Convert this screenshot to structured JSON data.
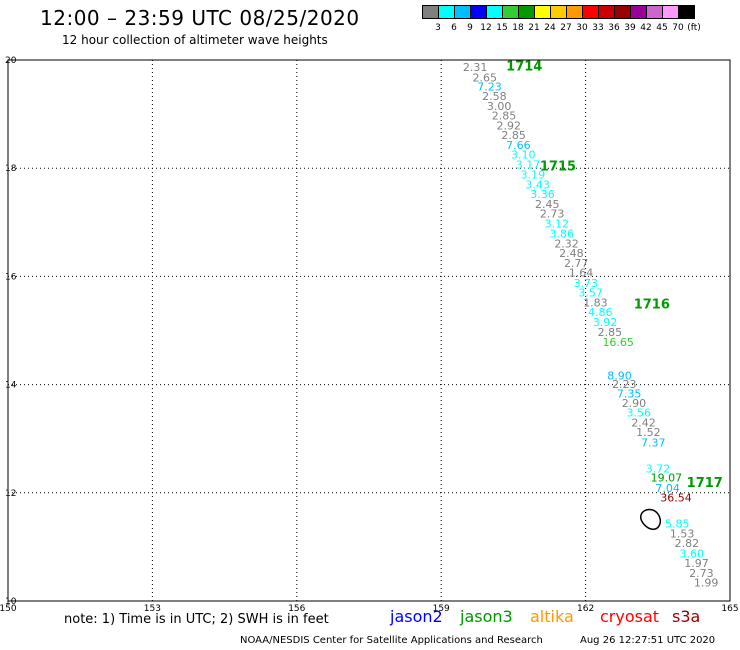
{
  "header": {
    "title": "12:00 – 23:59 UTC 08/25/2020",
    "subtitle": "12 hour collection of altimeter wave heights"
  },
  "colorbar": {
    "colors": [
      "#808080",
      "#00ffff",
      "#00bfff",
      "#0000ff",
      "#00ffff",
      "#33cc33",
      "#009900",
      "#ffff00",
      "#ffcc00",
      "#ff9900",
      "#ff0000",
      "#cc0000",
      "#990000",
      "#990099",
      "#cc66cc",
      "#ff99ff",
      "#000000"
    ],
    "labels": [
      "3",
      "6",
      "9",
      "12",
      "15",
      "18",
      "21",
      "24",
      "27",
      "30",
      "33",
      "36",
      "39",
      "42",
      "45",
      "70",
      "(ft)"
    ]
  },
  "footer": {
    "note": "note: 1) Time is in UTC; 2) SWH is in feet",
    "credit": "NOAA/NESDIS Center for Satellite Applications and Research",
    "timestamp": "Aug 26 12:27:51 UTC 2020",
    "satellites": [
      {
        "name": "jason2",
        "color": "#0000ff"
      },
      {
        "name": "jason3",
        "color": "#009900"
      },
      {
        "name": "altika",
        "color": "#ff9900"
      },
      {
        "name": "cryosat",
        "color": "#ff0000"
      },
      {
        "name": "s3a",
        "color": "#990000"
      }
    ]
  },
  "chart_data": {
    "type": "scatter",
    "title": "12:00 – 23:59 UTC 08/25/2020",
    "subtitle": "12 hour collection of altimeter wave heights",
    "xlim": [
      150,
      165
    ],
    "ylim": [
      10,
      20
    ],
    "x_ticks": [
      150,
      153,
      156,
      159,
      162,
      165
    ],
    "y_ticks": [
      10,
      12,
      14,
      16,
      18,
      20
    ],
    "grid": true,
    "grid_style": "dotted",
    "units": "ft",
    "points": [
      {
        "lon": 159.45,
        "lat": 19.87,
        "swh": "2.31",
        "color": "#808080"
      },
      {
        "lon": 159.65,
        "lat": 19.68,
        "swh": "2.65",
        "color": "#808080"
      },
      {
        "lon": 159.75,
        "lat": 19.51,
        "swh": "7.23",
        "color": "#00bfff"
      },
      {
        "lon": 159.85,
        "lat": 19.33,
        "swh": "2.58",
        "color": "#808080"
      },
      {
        "lon": 159.95,
        "lat": 19.15,
        "swh": "3.00",
        "color": "#808080"
      },
      {
        "lon": 160.05,
        "lat": 18.97,
        "swh": "2.85",
        "color": "#808080"
      },
      {
        "lon": 160.15,
        "lat": 18.79,
        "swh": "2.92",
        "color": "#808080"
      },
      {
        "lon": 160.25,
        "lat": 18.61,
        "swh": "2.85",
        "color": "#808080"
      },
      {
        "lon": 160.35,
        "lat": 18.43,
        "swh": "7.66",
        "color": "#00bfff"
      },
      {
        "lon": 160.45,
        "lat": 18.25,
        "swh": "3.10",
        "color": "#00ffff"
      },
      {
        "lon": 160.55,
        "lat": 18.07,
        "swh": "3.17",
        "color": "#00ffff"
      },
      {
        "lon": 160.65,
        "lat": 17.88,
        "swh": "3.19",
        "color": "#00ffff"
      },
      {
        "lon": 160.75,
        "lat": 17.7,
        "swh": "3.43",
        "color": "#00ffff"
      },
      {
        "lon": 160.85,
        "lat": 17.52,
        "swh": "3.36",
        "color": "#00ffff"
      },
      {
        "lon": 160.95,
        "lat": 17.34,
        "swh": "2.45",
        "color": "#808080"
      },
      {
        "lon": 161.05,
        "lat": 17.16,
        "swh": "2.73",
        "color": "#808080"
      },
      {
        "lon": 161.15,
        "lat": 16.98,
        "swh": "3.12",
        "color": "#00ffff"
      },
      {
        "lon": 161.25,
        "lat": 16.79,
        "swh": "3.86",
        "color": "#00ffff"
      },
      {
        "lon": 161.35,
        "lat": 16.61,
        "swh": "2.32",
        "color": "#808080"
      },
      {
        "lon": 161.45,
        "lat": 16.43,
        "swh": "2.48",
        "color": "#808080"
      },
      {
        "lon": 161.55,
        "lat": 16.25,
        "swh": "2.77",
        "color": "#808080"
      },
      {
        "lon": 161.65,
        "lat": 16.07,
        "swh": "1.64",
        "color": "#808080"
      },
      {
        "lon": 161.75,
        "lat": 15.88,
        "swh": "3.73",
        "color": "#00ffff"
      },
      {
        "lon": 161.85,
        "lat": 15.7,
        "swh": "3.57",
        "color": "#00ffff"
      },
      {
        "lon": 161.95,
        "lat": 15.52,
        "swh": "1.83",
        "color": "#808080"
      },
      {
        "lon": 162.05,
        "lat": 15.34,
        "swh": "4.86",
        "color": "#00ffff"
      },
      {
        "lon": 162.15,
        "lat": 15.16,
        "swh": "3.92",
        "color": "#00ffff"
      },
      {
        "lon": 162.25,
        "lat": 14.97,
        "swh": "2.85",
        "color": "#808080"
      },
      {
        "lon": 162.35,
        "lat": 14.79,
        "swh": "16.65",
        "color": "#33cc33"
      },
      {
        "lon": 162.45,
        "lat": 14.17,
        "swh": "8.90",
        "color": "#00bfff"
      },
      {
        "lon": 162.55,
        "lat": 14.01,
        "swh": "2.23",
        "color": "#808080"
      },
      {
        "lon": 162.65,
        "lat": 13.84,
        "swh": "7.35",
        "color": "#00bfff"
      },
      {
        "lon": 162.75,
        "lat": 13.66,
        "swh": "2.90",
        "color": "#808080"
      },
      {
        "lon": 162.85,
        "lat": 13.48,
        "swh": "3.56",
        "color": "#00ffff"
      },
      {
        "lon": 162.95,
        "lat": 13.3,
        "swh": "2.42",
        "color": "#808080"
      },
      {
        "lon": 163.05,
        "lat": 13.12,
        "swh": "1.52",
        "color": "#808080"
      },
      {
        "lon": 163.15,
        "lat": 12.93,
        "swh": "7.37",
        "color": "#00bfff"
      },
      {
        "lon": 163.25,
        "lat": 12.45,
        "swh": "3.72",
        "color": "#00ffff"
      },
      {
        "lon": 163.35,
        "lat": 12.28,
        "swh": "19.07",
        "color": "#009900"
      },
      {
        "lon": 163.45,
        "lat": 12.09,
        "swh": "7.04",
        "color": "#00bfff"
      },
      {
        "lon": 163.55,
        "lat": 11.91,
        "swh": "36.54",
        "color": "#990000"
      },
      {
        "lon": 163.65,
        "lat": 11.43,
        "swh": "5.85",
        "color": "#00ffff"
      },
      {
        "lon": 163.75,
        "lat": 11.25,
        "swh": "1.53",
        "color": "#808080"
      },
      {
        "lon": 163.85,
        "lat": 11.07,
        "swh": "2.82",
        "color": "#808080"
      },
      {
        "lon": 163.95,
        "lat": 10.88,
        "swh": "3.60",
        "color": "#00ffff"
      },
      {
        "lon": 164.05,
        "lat": 10.7,
        "swh": "1.97",
        "color": "#808080"
      },
      {
        "lon": 164.15,
        "lat": 10.52,
        "swh": "2.73",
        "color": "#808080"
      },
      {
        "lon": 164.25,
        "lat": 10.34,
        "swh": "1.99",
        "color": "#808080"
      }
    ],
    "time_labels": [
      {
        "text": "1714",
        "lon": 160.35,
        "lat": 19.9,
        "color": "#009900"
      },
      {
        "text": "1715",
        "lon": 161.05,
        "lat": 18.05,
        "color": "#009900"
      },
      {
        "text": "1716",
        "lon": 163.0,
        "lat": 15.5,
        "color": "#009900"
      },
      {
        "text": "1717",
        "lon": 164.1,
        "lat": 12.2,
        "color": "#009900"
      }
    ],
    "annotations": [
      {
        "type": "contour",
        "lon": 163.35,
        "lat": 11.5,
        "color": "#000000"
      }
    ]
  }
}
